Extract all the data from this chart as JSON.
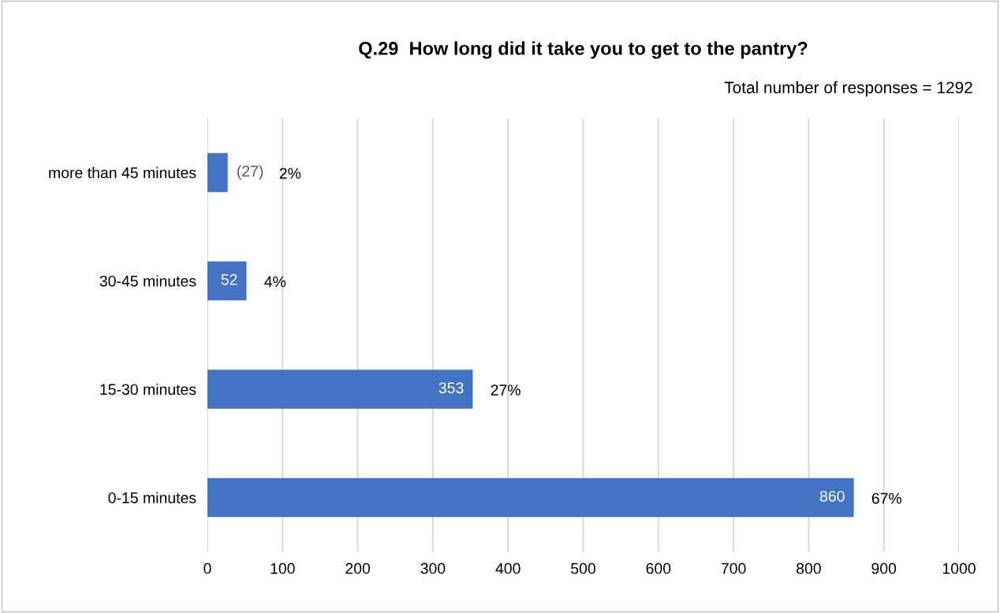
{
  "chart_data": {
    "type": "bar",
    "orientation": "horizontal",
    "title": "Q.29  How long did it take you to get to the pantry?",
    "categories": [
      "more than 45 minutes",
      "30-45 minutes",
      "15-30 minutes",
      "0-15 minutes"
    ],
    "values": [
      27,
      52,
      353,
      860
    ],
    "value_labels": [
      "(27)",
      "52",
      "353",
      "860"
    ],
    "color": "#4472c4",
    "xlim": [
      0,
      1000
    ],
    "xticks": [
      0,
      100,
      200,
      300,
      400,
      500,
      600,
      700,
      800,
      900,
      1000
    ],
    "grid": "x",
    "annotations": [
      "Total number of responses = 1292",
      "2%",
      "4%",
      "27%",
      "67%"
    ]
  }
}
